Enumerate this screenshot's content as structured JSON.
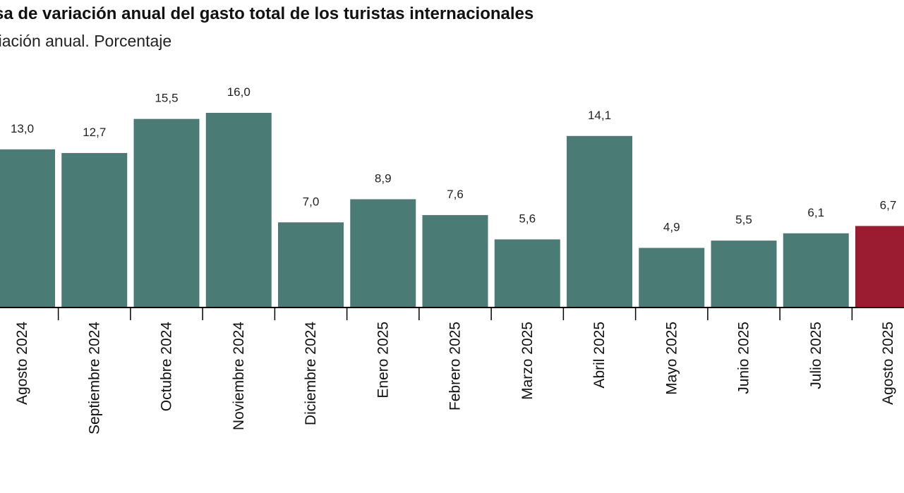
{
  "chart_data": {
    "type": "bar",
    "title": "sa de variación anual del gasto total de los turistas internacionales",
    "subtitle": "riación anual. Porcentaje",
    "categories": [
      "Agosto 2024",
      "Septiembre 2024",
      "Octubre 2024",
      "Noviembre 2024",
      "Diciembre 2024",
      "Enero 2025",
      "Febrero 2025",
      "Marzo 2025",
      "Abril 2025",
      "Mayo 2025",
      "Junio 2025",
      "Julio 2025",
      "Agosto 2025"
    ],
    "values": [
      13.0,
      12.7,
      15.5,
      16.0,
      7.0,
      8.9,
      7.6,
      5.6,
      14.1,
      4.9,
      5.5,
      6.1,
      6.7
    ],
    "value_labels": [
      "13,0",
      "12,7",
      "15,5",
      "16,0",
      "7,0",
      "8,9",
      "7,6",
      "5,6",
      "14,1",
      "4,9",
      "5,5",
      "6,1",
      "6,7"
    ],
    "ylim": [
      0,
      16.0
    ],
    "grid": false,
    "colors": {
      "bar": "#4a7c75",
      "highlight": "#9b1b30",
      "axis": "#000000"
    },
    "highlight_index": 12
  }
}
